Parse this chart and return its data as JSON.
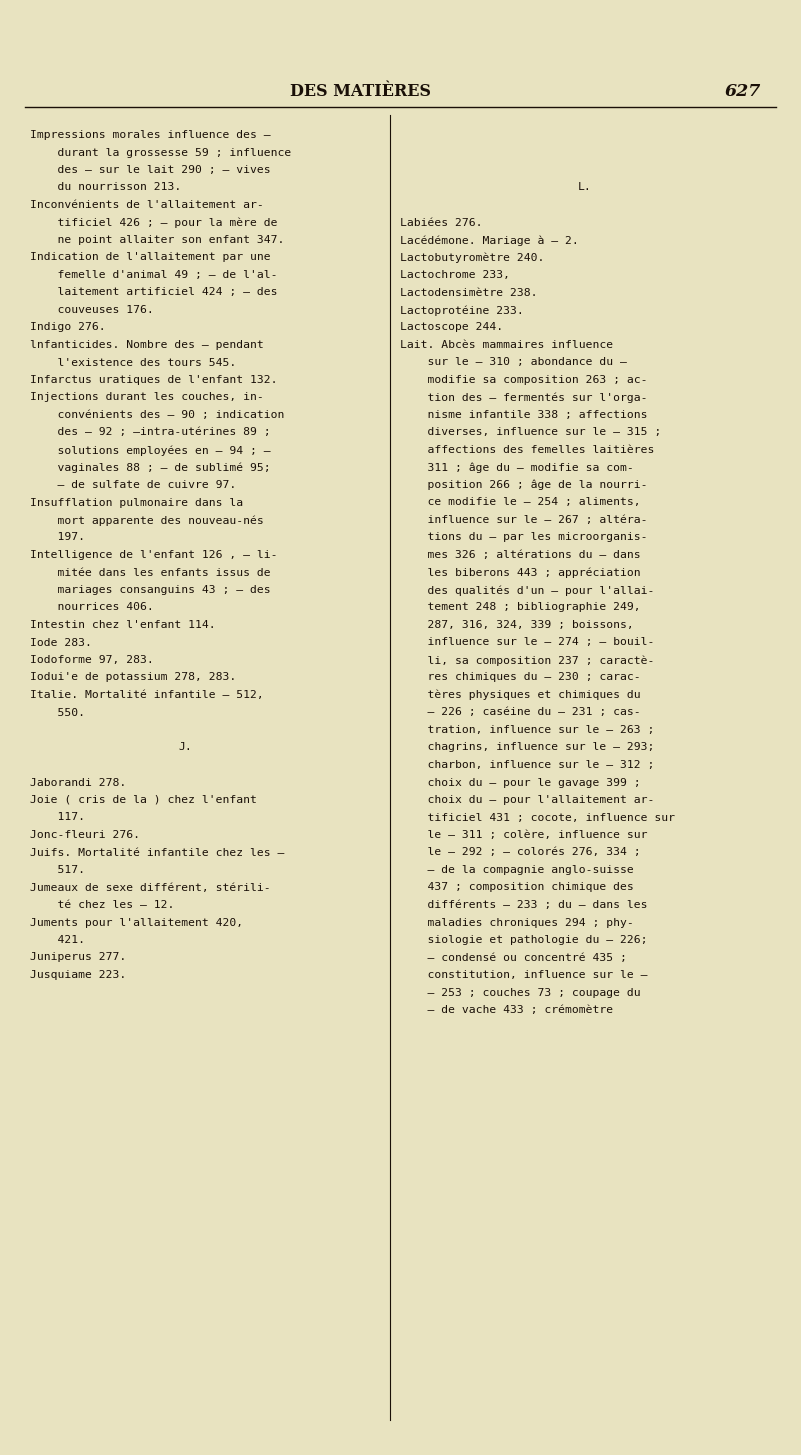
{
  "bg_color": "#e8e3c0",
  "text_color": "#1a1008",
  "header_text": "DES MATIÈRES",
  "page_number": "627",
  "header_fontsize": 11.5,
  "body_fontsize": 8.2,
  "left_column": [
    "Impressions morales influence des —",
    "    durant la grossesse 59 ; influence",
    "    des — sur le lait 290 ; — vives",
    "    du nourrisson 213.",
    "Inconvénients de l'allaitement ar-",
    "    tificiel 426 ; — pour la mère de",
    "    ne point allaiter son enfant 347.",
    "Indication de l'allaitement par une",
    "    femelle d'animal 49 ; — de l'al-",
    "    laitement artificiel 424 ; — des",
    "    couveuses 176.",
    "Indigo 276.",
    "lnfanticides. Nombre des — pendant",
    "    l'existence des tours 545.",
    "Infarctus uratiques de l'enfant 132.",
    "Injections durant les couches, in-",
    "    convénients des — 90 ; indication",
    "    des — 92 ; —intra-utérines 89 ;",
    "    solutions employées en — 94 ; —",
    "    vaginales 88 ; — de sublimé 95;",
    "    — de sulfate de cuivre 97.",
    "Insufflation pulmonaire dans la",
    "    mort apparente des nouveau-nés",
    "    197.",
    "Intelligence de l'enfant 126 , — li-",
    "    mitée dans les enfants issus de",
    "    mariages consanguins 43 ; — des",
    "    nourrices 406.",
    "Intestin chez l'enfant 114.",
    "Iode 283.",
    "Iodoforme 97, 283.",
    "Iodui'e de potassium 278, 283.",
    "Italie. Mortalité infantile — 512,",
    "    550.",
    "",
    "J.",
    "",
    "Jaborandi 278.",
    "Joie ( cris de la ) chez l'enfant",
    "    117.",
    "Jonc-fleuri 276.",
    "Juifs. Mortalité infantile chez les —",
    "    517.",
    "Jumeaux de sexe différent, stérili-",
    "    té chez les — 12.",
    "Juments pour l'allaitement 420,",
    "    421.",
    "Juniperus 277.",
    "Jusquiame 223."
  ],
  "right_column": [
    "",
    "",
    "",
    "L.",
    "",
    "Labiées 276.",
    "Lacédémone. Mariage à — 2.",
    "Lactobutyromètre 240.",
    "Lactochrome 233,",
    "Lactodensimètre 238.",
    "Lactoprotéine 233.",
    "Lactoscope 244.",
    "Lait. Abcès mammaires influence",
    "    sur le — 310 ; abondance du —",
    "    modifie sa composition 263 ; ac-",
    "    tion des — fermentés sur l'orga-",
    "    nisme infantile 338 ; affections",
    "    diverses, influence sur le — 315 ;",
    "    affections des femelles laitières",
    "    311 ; âge du — modifie sa com-",
    "    position 266 ; âge de la nourri-",
    "    ce modifie le — 254 ; aliments,",
    "    influence sur le — 267 ; altéra-",
    "    tions du — par les microorganis-",
    "    mes 326 ; altérations du — dans",
    "    les biberons 443 ; appréciation",
    "    des qualités d'un — pour l'allai-",
    "    tement 248 ; bibliographie 249,",
    "    287, 316, 324, 339 ; boissons,",
    "    influence sur le — 274 ; — bouil-",
    "    li, sa composition 237 ; caractè-",
    "    res chimiques du — 230 ; carac-",
    "    tères physiques et chimiques du",
    "    — 226 ; caséine du — 231 ; cas-",
    "    tration, influence sur le — 263 ;",
    "    chagrins, influence sur le — 293;",
    "    charbon, influence sur le — 312 ;",
    "    choix du — pour le gavage 399 ;",
    "    choix du — pour l'allaitement ar-",
    "    tificiel 431 ; cocote, influence sur",
    "    le — 311 ; colère, influence sur",
    "    le — 292 ; — colorés 276, 334 ;",
    "    — de la compagnie anglo-suisse",
    "    437 ; composition chimique des",
    "    différents — 233 ; du — dans les",
    "    maladies chroniques 294 ; phy-",
    "    siologie et pathologie du — 226;",
    "    — condensé ou concentré 435 ;",
    "    constitution, influence sur le —",
    "    — 253 ; couches 73 ; coupage du",
    "    — de vache 433 ; crémomètre"
  ]
}
